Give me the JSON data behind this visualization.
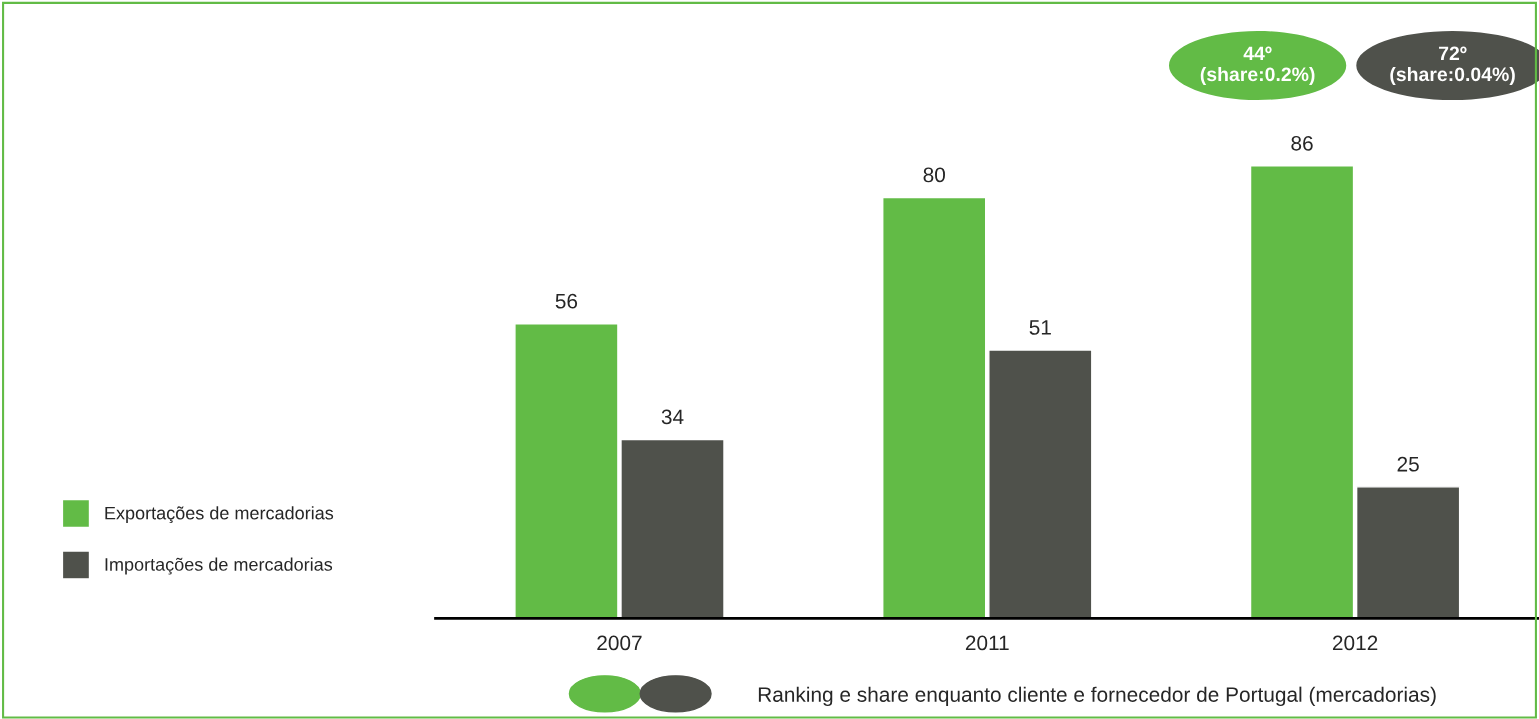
{
  "chart_data": {
    "type": "bar",
    "categories": [
      "2007",
      "2011",
      "2012"
    ],
    "series": [
      {
        "name": "Exportações de mercadorias",
        "color": "#62bb46",
        "values": [
          56,
          80,
          86
        ]
      },
      {
        "name": "Importações de mercadorias",
        "color": "#4f514b",
        "values": [
          34,
          51,
          25
        ]
      }
    ],
    "data_labels": true,
    "legend": "left",
    "grid": false,
    "annotations": [
      "44º\n(share:0.2%)",
      "72º\n(share:0.04%)",
      "Ranking e share enquanto cliente e fornecedor de Portugal (mercadorias)"
    ]
  }
}
